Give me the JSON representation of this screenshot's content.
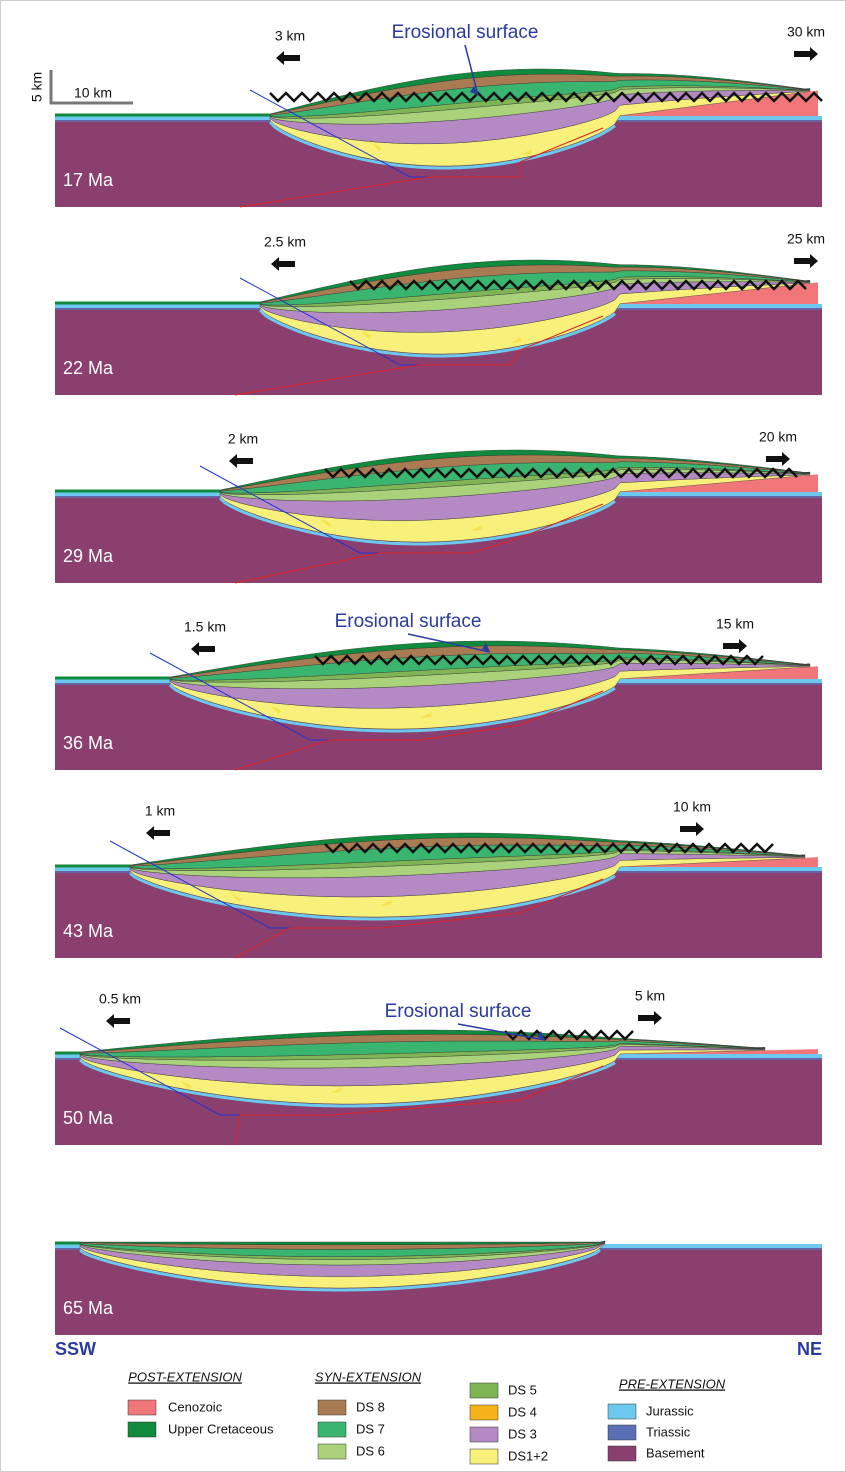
{
  "scale_bar": {
    "vertical": "5 km",
    "horizontal": "10 km"
  },
  "panels": [
    {
      "age": "17 Ma",
      "left_extension": "3 km",
      "right_extension": "30 km",
      "annotation": "Erosional surface"
    },
    {
      "age": "22 Ma",
      "left_extension": "2.5 km",
      "right_extension": "25 km"
    },
    {
      "age": "29 Ma",
      "left_extension": "2 km",
      "right_extension": "20 km"
    },
    {
      "age": "36 Ma",
      "left_extension": "1.5 km",
      "right_extension": "15 km",
      "annotation": "Erosional surface"
    },
    {
      "age": "43 Ma",
      "left_extension": "1 km",
      "right_extension": "10 km"
    },
    {
      "age": "50 Ma",
      "left_extension": "0.5 km",
      "right_extension": "5 km",
      "annotation": "Erosional surface"
    },
    {
      "age": "65 Ma"
    }
  ],
  "orientation": {
    "left": "SSW",
    "right": "NE"
  },
  "legend": [
    {
      "title": "POST-EXTENSION",
      "items": [
        {
          "label": "Cenozoic",
          "color": "#f0767a"
        },
        {
          "label": "Upper Cretaceous",
          "color": "#108a3c"
        }
      ]
    },
    {
      "title": "SYN-EXTENSION",
      "items": [
        {
          "label": "DS 8",
          "color": "#a87b52"
        },
        {
          "label": "DS 7",
          "color": "#3ab570"
        },
        {
          "label": "DS 6",
          "color": "#a9d27a"
        },
        {
          "label": "DS 5",
          "color": "#7fb555"
        },
        {
          "label": "DS 4",
          "color": "#f6b21a"
        },
        {
          "label": "DS 3",
          "color": "#b58ac4"
        },
        {
          "label": "DS1+2",
          "color": "#f7f07a"
        }
      ]
    },
    {
      "title": "PRE-EXTENSION",
      "items": [
        {
          "label": "Jurassic",
          "color": "#6cc8ef"
        },
        {
          "label": "Triassic",
          "color": "#5a6fb5"
        },
        {
          "label": "Basement",
          "color": "#8b3f6e"
        }
      ]
    }
  ]
}
